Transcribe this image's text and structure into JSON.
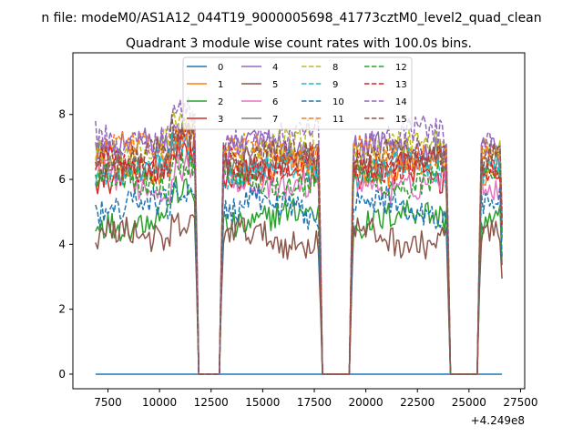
{
  "figure": {
    "suptitle": "n file: modeM0/AS1A12_044T19_9000005698_41773cztM0_level2_quad_clean",
    "title": "Quadrant 3 module wise count rates with 100.0s bins.",
    "offset_text": "+4.249e8"
  },
  "chart_data": {
    "type": "line",
    "title": "Quadrant 3 module wise count rates with 100.0s bins.",
    "xlabel": "",
    "ylabel": "",
    "x_offset": 424900000,
    "xlim": [
      5800,
      27700
    ],
    "ylim": [
      -0.45,
      9.9
    ],
    "xticks": [
      7500,
      10000,
      12500,
      15000,
      17500,
      20000,
      22500,
      25000,
      27500
    ],
    "xtick_labels": [
      "7500",
      "10000",
      "12500",
      "15000",
      "17500",
      "20000",
      "22500",
      "25000",
      "27500"
    ],
    "yticks": [
      0,
      2,
      4,
      6,
      8
    ],
    "ytick_labels": [
      "0",
      "2",
      "4",
      "6",
      "8"
    ],
    "grid": false,
    "legend": {
      "placement": "top-center",
      "columns": 4
    },
    "x_range": [
      6900,
      26600
    ],
    "bin_width": 100,
    "gaps": [
      [
        11900,
        12900
      ],
      [
        17900,
        19200
      ],
      [
        24100,
        25400
      ]
    ],
    "series": [
      {
        "name": "0",
        "color": "#1f77b4",
        "dashed": false,
        "level": 0.0
      },
      {
        "name": "1",
        "color": "#ff7f0e",
        "dashed": false,
        "level": 6.4
      },
      {
        "name": "2",
        "color": "#2ca02c",
        "dashed": false,
        "level": 4.8
      },
      {
        "name": "3",
        "color": "#d62728",
        "dashed": false,
        "level": 6.2
      },
      {
        "name": "4",
        "color": "#9467bd",
        "dashed": false,
        "level": 6.9
      },
      {
        "name": "5",
        "color": "#8c564b",
        "dashed": false,
        "level": 4.2
      },
      {
        "name": "6",
        "color": "#e377c2",
        "dashed": false,
        "level": 5.9
      },
      {
        "name": "7",
        "color": "#7f7f7f",
        "dashed": false,
        "level": 6.6
      },
      {
        "name": "8",
        "color": "#bcbd22",
        "dashed": true,
        "level": 7.0
      },
      {
        "name": "9",
        "color": "#17becf",
        "dashed": true,
        "level": 6.3
      },
      {
        "name": "10",
        "color": "#1f77b4",
        "dashed": true,
        "level": 5.1
      },
      {
        "name": "11",
        "color": "#ff7f0e",
        "dashed": true,
        "level": 6.8
      },
      {
        "name": "12",
        "color": "#2ca02c",
        "dashed": true,
        "level": 6.0
      },
      {
        "name": "13",
        "color": "#d62728",
        "dashed": true,
        "level": 6.5
      },
      {
        "name": "14",
        "color": "#9467bd",
        "dashed": true,
        "level": 7.3
      },
      {
        "name": "15",
        "color": "#8c564b",
        "dashed": true,
        "level": 6.7
      }
    ]
  }
}
